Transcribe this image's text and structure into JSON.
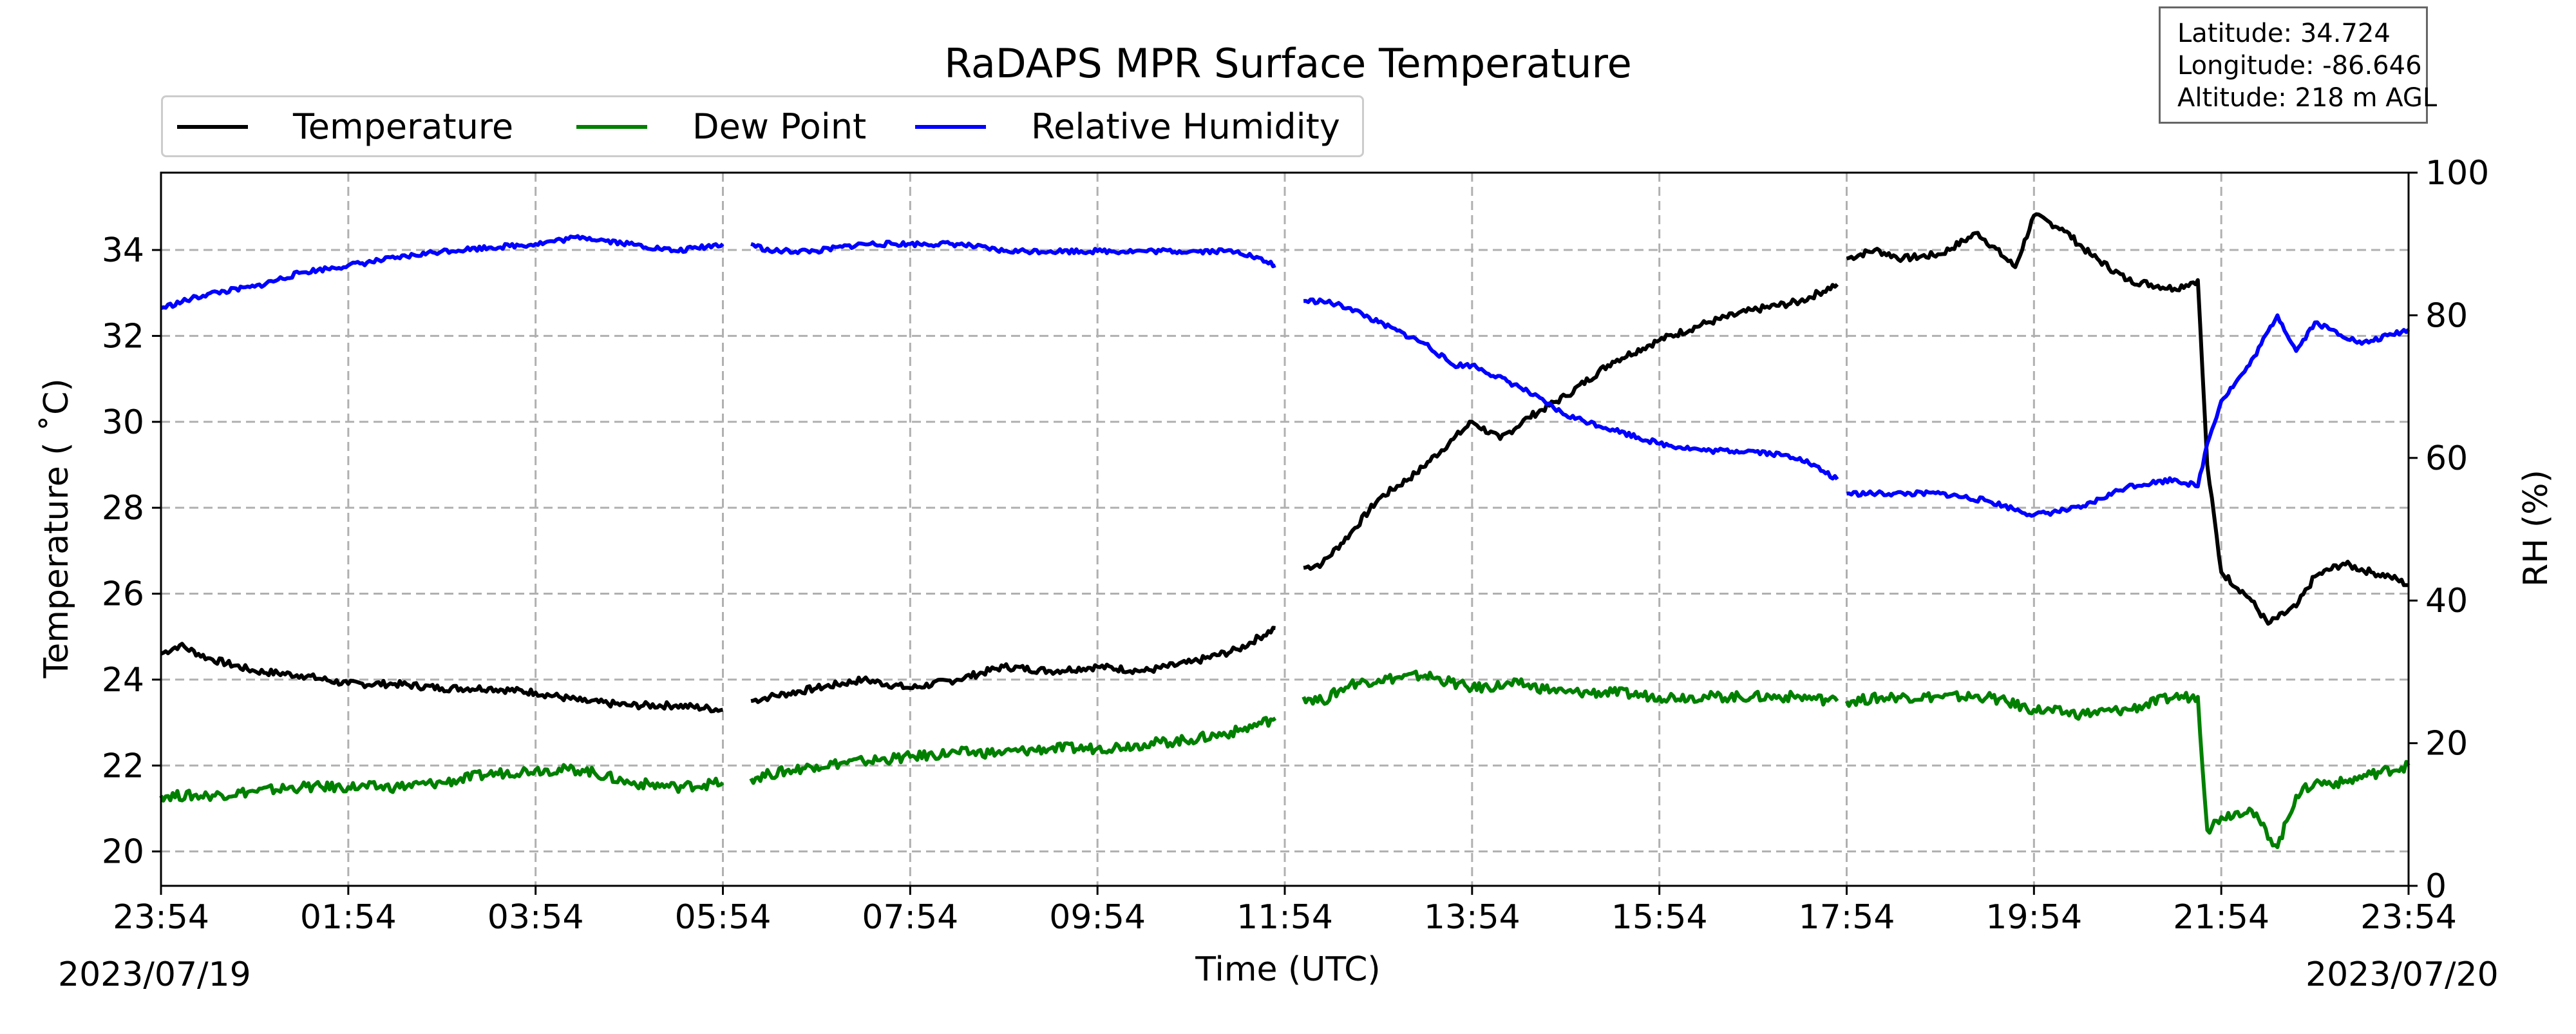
{
  "chart_data": {
    "type": "line",
    "title": "RaDAPS MPR Surface Temperature",
    "xlabel": "Time (UTC)",
    "ylabel_left": "Temperature ( ˚C)",
    "ylabel_right": "RH (%)",
    "x_start_date": "2023/07/19",
    "x_end_date": "2023/07/20",
    "x_ticks": [
      "23:54",
      "01:54",
      "03:54",
      "05:54",
      "07:54",
      "09:54",
      "11:54",
      "13:54",
      "15:54",
      "17:54",
      "19:54",
      "21:54",
      "23:54"
    ],
    "x_tick_hours": [
      0,
      2,
      4,
      6,
      8,
      10,
      12,
      14,
      16,
      18,
      20,
      22,
      24
    ],
    "xlim_hours": [
      0,
      24
    ],
    "ylim_left": [
      19.2,
      35.8
    ],
    "yticks_left": [
      20,
      22,
      24,
      26,
      28,
      30,
      32,
      34
    ],
    "ylim_right": [
      0,
      100
    ],
    "yticks_right": [
      0,
      20,
      40,
      60,
      80,
      100
    ],
    "grid": true,
    "legend_position": "top-left, above plot",
    "info_box": [
      "Latitude: 34.724",
      "Longitude: -86.646",
      "Altitude: 218 m AGL"
    ],
    "series": [
      {
        "name": "Temperature",
        "axis": "left",
        "color": "#000000",
        "x": [
          0.0,
          0.2,
          0.5,
          1.0,
          1.5,
          2.0,
          2.5,
          3.0,
          3.5,
          4.0,
          4.5,
          5.0,
          5.5,
          6.0,
          null,
          6.3,
          6.5,
          7.0,
          7.5,
          8.0,
          8.5,
          9.0,
          9.5,
          10.0,
          10.5,
          11.0,
          11.5,
          11.9,
          null,
          12.2,
          12.4,
          12.7,
          13.0,
          13.4,
          13.8,
          14.0,
          14.3,
          14.6,
          15.0,
          15.5,
          16.0,
          16.5,
          17.0,
          17.5,
          17.9,
          null,
          18.0,
          18.3,
          18.6,
          19.0,
          19.4,
          19.8,
          20.0,
          20.3,
          20.6,
          21.0,
          21.5,
          21.75,
          21.85,
          22.0,
          22.3,
          22.5,
          22.8,
          23.0,
          23.3,
          23.6,
          23.8,
          24.0
        ],
        "y": [
          24.6,
          24.8,
          24.5,
          24.2,
          24.1,
          23.9,
          23.9,
          23.8,
          23.8,
          23.7,
          23.5,
          23.4,
          23.4,
          23.3,
          null,
          23.5,
          23.6,
          23.8,
          24.0,
          23.8,
          24.0,
          24.3,
          24.2,
          24.3,
          24.2,
          24.4,
          24.7,
          25.2,
          null,
          26.6,
          26.7,
          27.4,
          28.2,
          28.8,
          29.6,
          30.0,
          29.6,
          30.1,
          30.6,
          31.4,
          31.9,
          32.3,
          32.6,
          32.8,
          33.2,
          null,
          33.8,
          34.0,
          33.8,
          33.9,
          34.4,
          33.6,
          34.8,
          34.5,
          33.9,
          33.3,
          33.1,
          33.3,
          29.0,
          26.5,
          25.9,
          25.3,
          25.7,
          26.4,
          26.7,
          26.5,
          26.4,
          26.2
        ]
      },
      {
        "name": "Dew Point",
        "axis": "left",
        "color": "#008000",
        "x": [
          0.0,
          0.5,
          1.0,
          1.5,
          2.0,
          2.5,
          3.0,
          3.5,
          4.0,
          4.5,
          5.0,
          5.5,
          6.0,
          null,
          6.3,
          6.5,
          7.0,
          7.5,
          8.0,
          8.5,
          9.0,
          9.5,
          10.0,
          10.5,
          11.0,
          11.5,
          11.9,
          null,
          12.2,
          12.4,
          12.7,
          13.0,
          13.5,
          14.0,
          14.5,
          15.0,
          15.5,
          16.0,
          16.5,
          17.0,
          17.5,
          17.9,
          null,
          18.0,
          18.5,
          19.0,
          19.5,
          20.0,
          20.5,
          21.0,
          21.5,
          21.75,
          21.85,
          22.0,
          22.3,
          22.6,
          22.8,
          23.0,
          23.3,
          23.6,
          24.0
        ],
        "y": [
          21.3,
          21.3,
          21.4,
          21.5,
          21.5,
          21.5,
          21.6,
          21.8,
          21.9,
          21.9,
          21.6,
          21.5,
          21.6,
          null,
          21.7,
          21.8,
          22.0,
          22.1,
          22.2,
          22.3,
          22.3,
          22.4,
          22.4,
          22.5,
          22.6,
          22.8,
          23.1,
          null,
          23.6,
          23.5,
          23.9,
          24.0,
          24.1,
          23.8,
          23.9,
          23.7,
          23.7,
          23.6,
          23.6,
          23.6,
          23.6,
          23.5,
          null,
          23.5,
          23.6,
          23.6,
          23.6,
          23.3,
          23.2,
          23.3,
          23.6,
          23.6,
          20.5,
          20.8,
          21.0,
          20.1,
          21.3,
          21.6,
          21.6,
          21.8,
          22.0
        ]
      },
      {
        "name": "Relative Humidity",
        "axis": "right",
        "color": "#0000ff",
        "x": [
          0.0,
          0.5,
          1.0,
          1.5,
          2.0,
          2.5,
          3.0,
          3.5,
          4.0,
          4.5,
          5.0,
          5.5,
          6.0,
          null,
          6.3,
          6.5,
          7.0,
          7.5,
          8.0,
          8.5,
          9.0,
          9.5,
          10.0,
          10.5,
          11.0,
          11.5,
          11.9,
          null,
          12.2,
          12.4,
          12.7,
          13.0,
          13.5,
          13.8,
          14.0,
          14.5,
          15.0,
          15.5,
          16.0,
          16.5,
          17.0,
          17.5,
          17.9,
          null,
          18.0,
          18.5,
          19.0,
          19.5,
          20.0,
          20.5,
          21.0,
          21.5,
          21.75,
          21.85,
          22.0,
          22.3,
          22.6,
          22.8,
          23.0,
          23.5,
          24.0
        ],
        "y": [
          81,
          83,
          84,
          86,
          87,
          88,
          89,
          89.5,
          90,
          91,
          90,
          89,
          90,
          null,
          90,
          89,
          89,
          90,
          90,
          90,
          89,
          89,
          89,
          89,
          89,
          89,
          87,
          null,
          82,
          82,
          81,
          79,
          76,
          73,
          73,
          70,
          66,
          64,
          62,
          61,
          61,
          60,
          57,
          null,
          55,
          55,
          55,
          54,
          52,
          53,
          56,
          57,
          56,
          62,
          68,
          73,
          80,
          75,
          79,
          76,
          78
        ]
      }
    ]
  }
}
